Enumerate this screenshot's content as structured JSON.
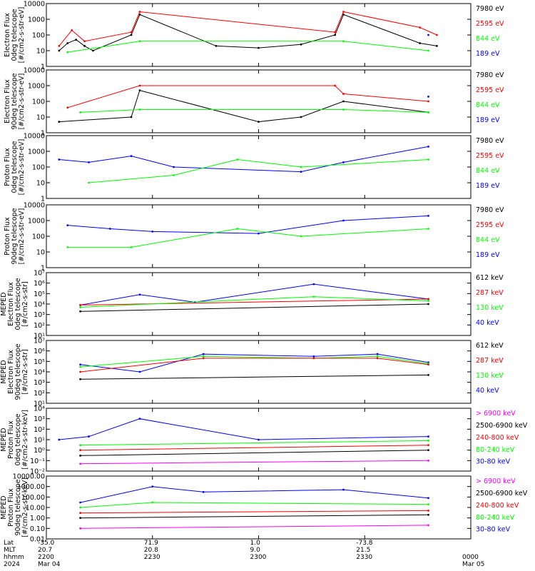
{
  "colors": {
    "black": "#000000",
    "red": "#ff0000",
    "green": "#00ff00",
    "blue": "#0000ff",
    "magenta": "#ff00ff"
  },
  "chart_data": [
    {
      "type": "line",
      "panel": 1,
      "ylabel_lines": [
        "Electron Flux",
        "0deg telescope",
        "[#/cm2-s-str-eV]"
      ],
      "ylog": true,
      "ylim": [
        1,
        10000
      ],
      "ytick_labels": [
        "10000",
        "1000",
        "100",
        "10",
        "1"
      ],
      "legend": [
        {
          "label": "7980 eV",
          "color": "black"
        },
        {
          "label": "2595 eV",
          "color": "red"
        },
        {
          "label": "844 eV",
          "color": "green"
        },
        {
          "label": "189 eV",
          "color": "blue"
        }
      ],
      "series": [
        {
          "color": "black",
          "x": [
            0.03,
            0.05,
            0.07,
            0.09,
            0.11,
            0.2,
            0.22,
            0.4,
            0.5,
            0.6,
            0.68,
            0.7,
            0.88,
            0.92
          ],
          "y": [
            10,
            30,
            50,
            20,
            10,
            100,
            2000,
            20,
            15,
            25,
            100,
            2000,
            30,
            20
          ]
        },
        {
          "color": "red",
          "x": [
            0.03,
            0.06,
            0.09,
            0.2,
            0.22,
            0.68,
            0.7,
            0.88,
            0.92
          ],
          "y": [
            20,
            200,
            40,
            150,
            3000,
            150,
            3000,
            300,
            100
          ]
        },
        {
          "color": "green",
          "x": [
            0.05,
            0.22,
            0.7,
            0.9
          ],
          "y": [
            8,
            40,
            40,
            10
          ]
        },
        {
          "color": "blue",
          "x": [
            0.9
          ],
          "y": [
            100
          ]
        }
      ]
    },
    {
      "type": "line",
      "panel": 2,
      "ylabel_lines": [
        "Electron Flux",
        "90deg telescope",
        "[#/cm2-s-str-eV]"
      ],
      "ylog": true,
      "ylim": [
        1,
        10000
      ],
      "ytick_labels": [
        "10000",
        "1000",
        "100",
        "10",
        "1"
      ],
      "legend": [
        {
          "label": "7980 eV",
          "color": "black"
        },
        {
          "label": "2595 eV",
          "color": "red"
        },
        {
          "label": "844 eV",
          "color": "green"
        },
        {
          "label": "189 eV",
          "color": "blue"
        }
      ],
      "series": [
        {
          "color": "black",
          "x": [
            0.03,
            0.2,
            0.22,
            0.5,
            0.6,
            0.7,
            0.9
          ],
          "y": [
            5,
            10,
            500,
            5,
            10,
            100,
            20
          ]
        },
        {
          "color": "red",
          "x": [
            0.05,
            0.22,
            0.68,
            0.7,
            0.9
          ],
          "y": [
            40,
            1000,
            1000,
            300,
            100
          ]
        },
        {
          "color": "green",
          "x": [
            0.08,
            0.22,
            0.7,
            0.9
          ],
          "y": [
            20,
            30,
            30,
            20
          ]
        },
        {
          "color": "blue",
          "x": [
            0.9
          ],
          "y": [
            200
          ]
        }
      ]
    },
    {
      "type": "line",
      "panel": 3,
      "ylabel_lines": [
        "Proton Flux",
        "0deg telescope",
        "[#/cm2-s-str-eV]"
      ],
      "ylog": true,
      "ylim": [
        1,
        10000
      ],
      "ytick_labels": [
        "10000",
        "1000",
        "100",
        "10",
        "1"
      ],
      "legend": [
        {
          "label": "7980 eV",
          "color": "black"
        },
        {
          "label": "2595 eV",
          "color": "red"
        },
        {
          "label": "844 eV",
          "color": "green"
        },
        {
          "label": "189 eV",
          "color": "blue"
        }
      ],
      "series": [
        {
          "color": "blue",
          "x": [
            0.03,
            0.1,
            0.2,
            0.3,
            0.6,
            0.7,
            0.9
          ],
          "y": [
            300,
            200,
            500,
            100,
            50,
            200,
            2000
          ]
        },
        {
          "color": "green",
          "x": [
            0.1,
            0.3,
            0.45,
            0.6,
            0.9
          ],
          "y": [
            10,
            30,
            300,
            100,
            300
          ]
        }
      ]
    },
    {
      "type": "line",
      "panel": 4,
      "ylabel_lines": [
        "Proton Flux",
        "90deg telescope",
        "[#/cm2-s-str-eV]"
      ],
      "ylog": true,
      "ylim": [
        1,
        10000
      ],
      "ytick_labels": [
        "10000",
        "1000",
        "100",
        "10",
        "1"
      ],
      "legend": [
        {
          "label": "7980 eV",
          "color": "black"
        },
        {
          "label": "2595 eV",
          "color": "red"
        },
        {
          "label": "844 eV",
          "color": "green"
        },
        {
          "label": "189 eV",
          "color": "blue"
        }
      ],
      "series": [
        {
          "color": "blue",
          "x": [
            0.05,
            0.15,
            0.25,
            0.5,
            0.7,
            0.9
          ],
          "y": [
            500,
            300,
            200,
            150,
            1000,
            2000
          ]
        },
        {
          "color": "green",
          "x": [
            0.05,
            0.2,
            0.45,
            0.6,
            0.9
          ],
          "y": [
            20,
            20,
            300,
            100,
            300
          ]
        }
      ]
    },
    {
      "type": "line",
      "panel": 5,
      "ylabel_lines": [
        "MEPED",
        "Electron Flux",
        "0deg telescope",
        "[#/cm2-s-str]"
      ],
      "ylog": true,
      "ylim": [
        10,
        10000000
      ],
      "ytick_labels": [
        "10⁷",
        "10⁶",
        "10⁵",
        "10⁴",
        "10³",
        "10²",
        "10¹"
      ],
      "legend": [
        {
          "label": "612 keV",
          "color": "black"
        },
        {
          "label": "287 keV",
          "color": "red"
        },
        {
          "label": "130 keV",
          "color": "green"
        },
        {
          "label": "40 keV",
          "color": "blue"
        }
      ],
      "series": [
        {
          "color": "blue",
          "x": [
            0.08,
            0.22,
            0.35,
            0.63,
            0.9
          ],
          "y": [
            8000,
            80000,
            15000,
            800000,
            30000
          ]
        },
        {
          "color": "red",
          "x": [
            0.08,
            0.9
          ],
          "y": [
            8000,
            30000
          ]
        },
        {
          "color": "green",
          "x": [
            0.08,
            0.63,
            0.9
          ],
          "y": [
            5000,
            50000,
            20000
          ]
        },
        {
          "color": "black",
          "x": [
            0.08,
            0.9
          ],
          "y": [
            2000,
            10000
          ]
        }
      ]
    },
    {
      "type": "line",
      "panel": 6,
      "ylabel_lines": [
        "MEPED",
        "Electron Flux",
        "90deg telescope",
        "[#/cm2-s-str]"
      ],
      "ylog": true,
      "ylim": [
        10,
        10000000
      ],
      "ytick_labels": [
        "10⁷",
        "10⁶",
        "10⁵",
        "10⁴",
        "10³",
        "10²",
        "10¹"
      ],
      "legend": [
        {
          "label": "612 keV",
          "color": "black"
        },
        {
          "label": "287 keV",
          "color": "red"
        },
        {
          "label": "130 keV",
          "color": "green"
        },
        {
          "label": "40 keV",
          "color": "blue"
        }
      ],
      "series": [
        {
          "color": "blue",
          "x": [
            0.08,
            0.22,
            0.37,
            0.63,
            0.78,
            0.9
          ],
          "y": [
            50000,
            10000,
            500000,
            300000,
            500000,
            80000
          ]
        },
        {
          "color": "green",
          "x": [
            0.08,
            0.37,
            0.63,
            0.78,
            0.9
          ],
          "y": [
            30000,
            300000,
            200000,
            300000,
            60000
          ]
        },
        {
          "color": "red",
          "x": [
            0.08,
            0.37,
            0.63,
            0.78,
            0.9
          ],
          "y": [
            10000,
            200000,
            200000,
            200000,
            50000
          ]
        },
        {
          "color": "black",
          "x": [
            0.08,
            0.9
          ],
          "y": [
            2000,
            5000
          ]
        }
      ]
    },
    {
      "type": "line",
      "panel": 7,
      "ylabel_lines": [
        "MEPED",
        "Proton Flux",
        "0deg telescope",
        "[#/cm2-s-str-keV]"
      ],
      "ylog": true,
      "ylim": [
        0.01,
        10000
      ],
      "ytick_labels": [
        "10⁴",
        "10³",
        "10²",
        "10¹",
        "10⁰",
        "10⁻¹",
        "10⁻²"
      ],
      "legend": [
        {
          "label": "> 6900 keV",
          "color": "magenta"
        },
        {
          "label": "2500-6900 keV",
          "color": "black"
        },
        {
          "label": "240-800 keV",
          "color": "red"
        },
        {
          "label": "80-240 keV",
          "color": "green"
        },
        {
          "label": "30-80 keV",
          "color": "blue"
        }
      ],
      "series": [
        {
          "color": "blue",
          "x": [
            0.03,
            0.1,
            0.22,
            0.5,
            0.9
          ],
          "y": [
            10,
            20,
            1000,
            10,
            20
          ]
        },
        {
          "color": "green",
          "x": [
            0.08,
            0.9
          ],
          "y": [
            3,
            8
          ]
        },
        {
          "color": "red",
          "x": [
            0.08,
            0.9
          ],
          "y": [
            1,
            3
          ]
        },
        {
          "color": "black",
          "x": [
            0.08,
            0.9
          ],
          "y": [
            0.3,
            1
          ]
        },
        {
          "color": "magenta",
          "x": [
            0.08,
            0.9
          ],
          "y": [
            0.05,
            0.1
          ]
        }
      ]
    },
    {
      "type": "line",
      "panel": 8,
      "ylabel_lines": [
        "MEPED",
        "Proton Flux",
        "90deg telescope",
        "[#/cm2-s-str-keV]"
      ],
      "ylog": true,
      "ylim": [
        0.01,
        10000
      ],
      "ytick_labels": [
        "10000.00",
        "1000.00",
        "100.00",
        "10.00",
        "1.00",
        "0.10",
        "0.01"
      ],
      "legend": [
        {
          "label": "> 6900 keV",
          "color": "magenta"
        },
        {
          "label": "2500-6900 keV",
          "color": "black"
        },
        {
          "label": "240-800 keV",
          "color": "red"
        },
        {
          "label": "80-240 keV",
          "color": "green"
        },
        {
          "label": "30-80 keV",
          "color": "blue"
        }
      ],
      "series": [
        {
          "color": "blue",
          "x": [
            0.08,
            0.25,
            0.37,
            0.7,
            0.9
          ],
          "y": [
            30,
            1000,
            300,
            500,
            80
          ]
        },
        {
          "color": "green",
          "x": [
            0.08,
            0.25,
            0.9
          ],
          "y": [
            10,
            30,
            20
          ]
        },
        {
          "color": "red",
          "x": [
            0.08,
            0.9
          ],
          "y": [
            3,
            5
          ]
        },
        {
          "color": "black",
          "x": [
            0.08,
            0.9
          ],
          "y": [
            1,
            2
          ]
        },
        {
          "color": "magenta",
          "x": [
            0.08,
            0.9
          ],
          "y": [
            0.1,
            0.2
          ]
        }
      ]
    }
  ],
  "xaxis": {
    "row_labels": [
      "Lat",
      "MLT",
      "hhmm",
      "2024"
    ],
    "ticks": [
      {
        "pos": 0.0,
        "lines": [
          "-35.0",
          "20.7",
          "2200",
          "Mar 04"
        ]
      },
      {
        "pos": 0.25,
        "lines": [
          "71.9",
          "20.8",
          "2230",
          ""
        ]
      },
      {
        "pos": 0.5,
        "lines": [
          "1.0",
          "9.0",
          "2300",
          ""
        ]
      },
      {
        "pos": 0.75,
        "lines": [
          "-73.8",
          "21.5",
          "2330",
          ""
        ]
      },
      {
        "pos": 1.0,
        "lines": [
          "",
          "",
          "0000",
          "Mar 05"
        ]
      }
    ]
  }
}
